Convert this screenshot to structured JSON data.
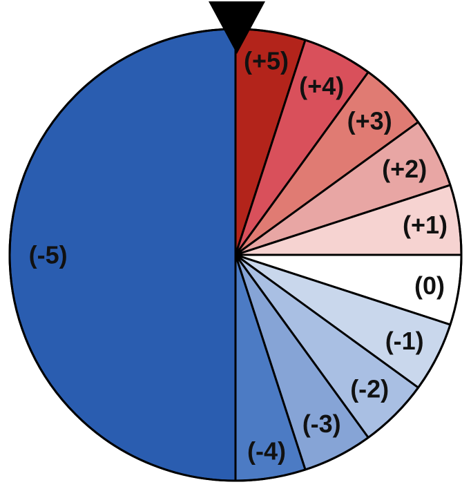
{
  "chart_data": {
    "type": "pie",
    "start": "top",
    "direction": "clockwise",
    "slices": [
      {
        "label": "(+5)",
        "value": 1,
        "color": "#B3241B"
      },
      {
        "label": "(+4)",
        "value": 1,
        "color": "#D9505B"
      },
      {
        "label": "(+3)",
        "value": 1,
        "color": "#E07B73"
      },
      {
        "label": "(+2)",
        "value": 1,
        "color": "#E8A6A4"
      },
      {
        "label": "(+1)",
        "value": 1,
        "color": "#F6D3D1"
      },
      {
        "label": "(0)",
        "value": 1,
        "color": "#FFFFFF"
      },
      {
        "label": "(-1)",
        "value": 1,
        "color": "#C9D7EC"
      },
      {
        "label": "(-2)",
        "value": 1,
        "color": "#A9BFE3"
      },
      {
        "label": "(-3)",
        "value": 1,
        "color": "#86A4D6"
      },
      {
        "label": "(-4)",
        "value": 1,
        "color": "#4C7BC4"
      },
      {
        "label": "(-5)",
        "value": 10,
        "color": "#2A5DB0"
      }
    ],
    "pointer": {
      "position": "top",
      "color": "#000000"
    },
    "outline_color": "#000000"
  }
}
